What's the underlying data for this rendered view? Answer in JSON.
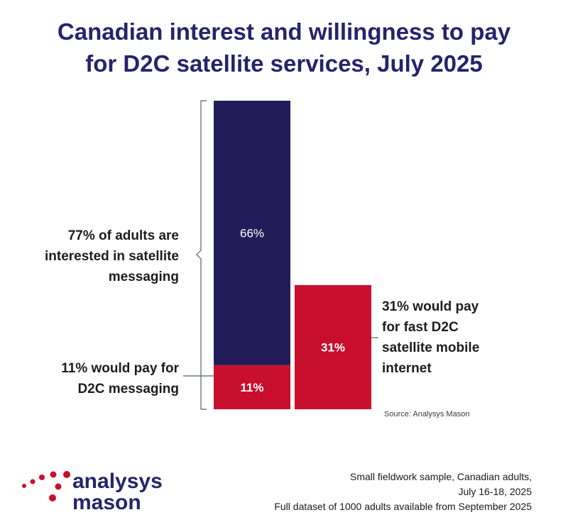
{
  "title": {
    "line1": "Canadian interest and willingness to pay",
    "line2": "for D2C satellite services, July 2025"
  },
  "colors": {
    "navy": "#221d59",
    "red": "#c8102e",
    "title": "#25246a",
    "bracket": "#5a5f72"
  },
  "chart_data": {
    "type": "bar",
    "stacked": true,
    "ylim": [
      0,
      77
    ],
    "bars": [
      {
        "segments": [
          {
            "value": 11,
            "label": "11%",
            "color": "#c8102e"
          },
          {
            "value": 66,
            "label": "66%",
            "color": "#221d59"
          }
        ]
      },
      {
        "segments": [
          {
            "value": 31,
            "label": "31%",
            "color": "#c8102e"
          }
        ]
      }
    ]
  },
  "annotations": {
    "interested": [
      "77% of adults are",
      "interested in satellite",
      "messaging"
    ],
    "pay_messaging": [
      "11% would pay for",
      "D2C messaging"
    ],
    "pay_internet": [
      "31% would pay",
      "for fast D2C",
      "satellite mobile",
      "internet"
    ]
  },
  "source": "Source: Analysys Mason",
  "notes": [
    "Small fieldwork sample, Canadian adults,",
    "July 16-18, 2025",
    "Full dataset of 1000 adults available from September 2025"
  ],
  "logo": {
    "line1": "analysys",
    "line2": "mason"
  }
}
